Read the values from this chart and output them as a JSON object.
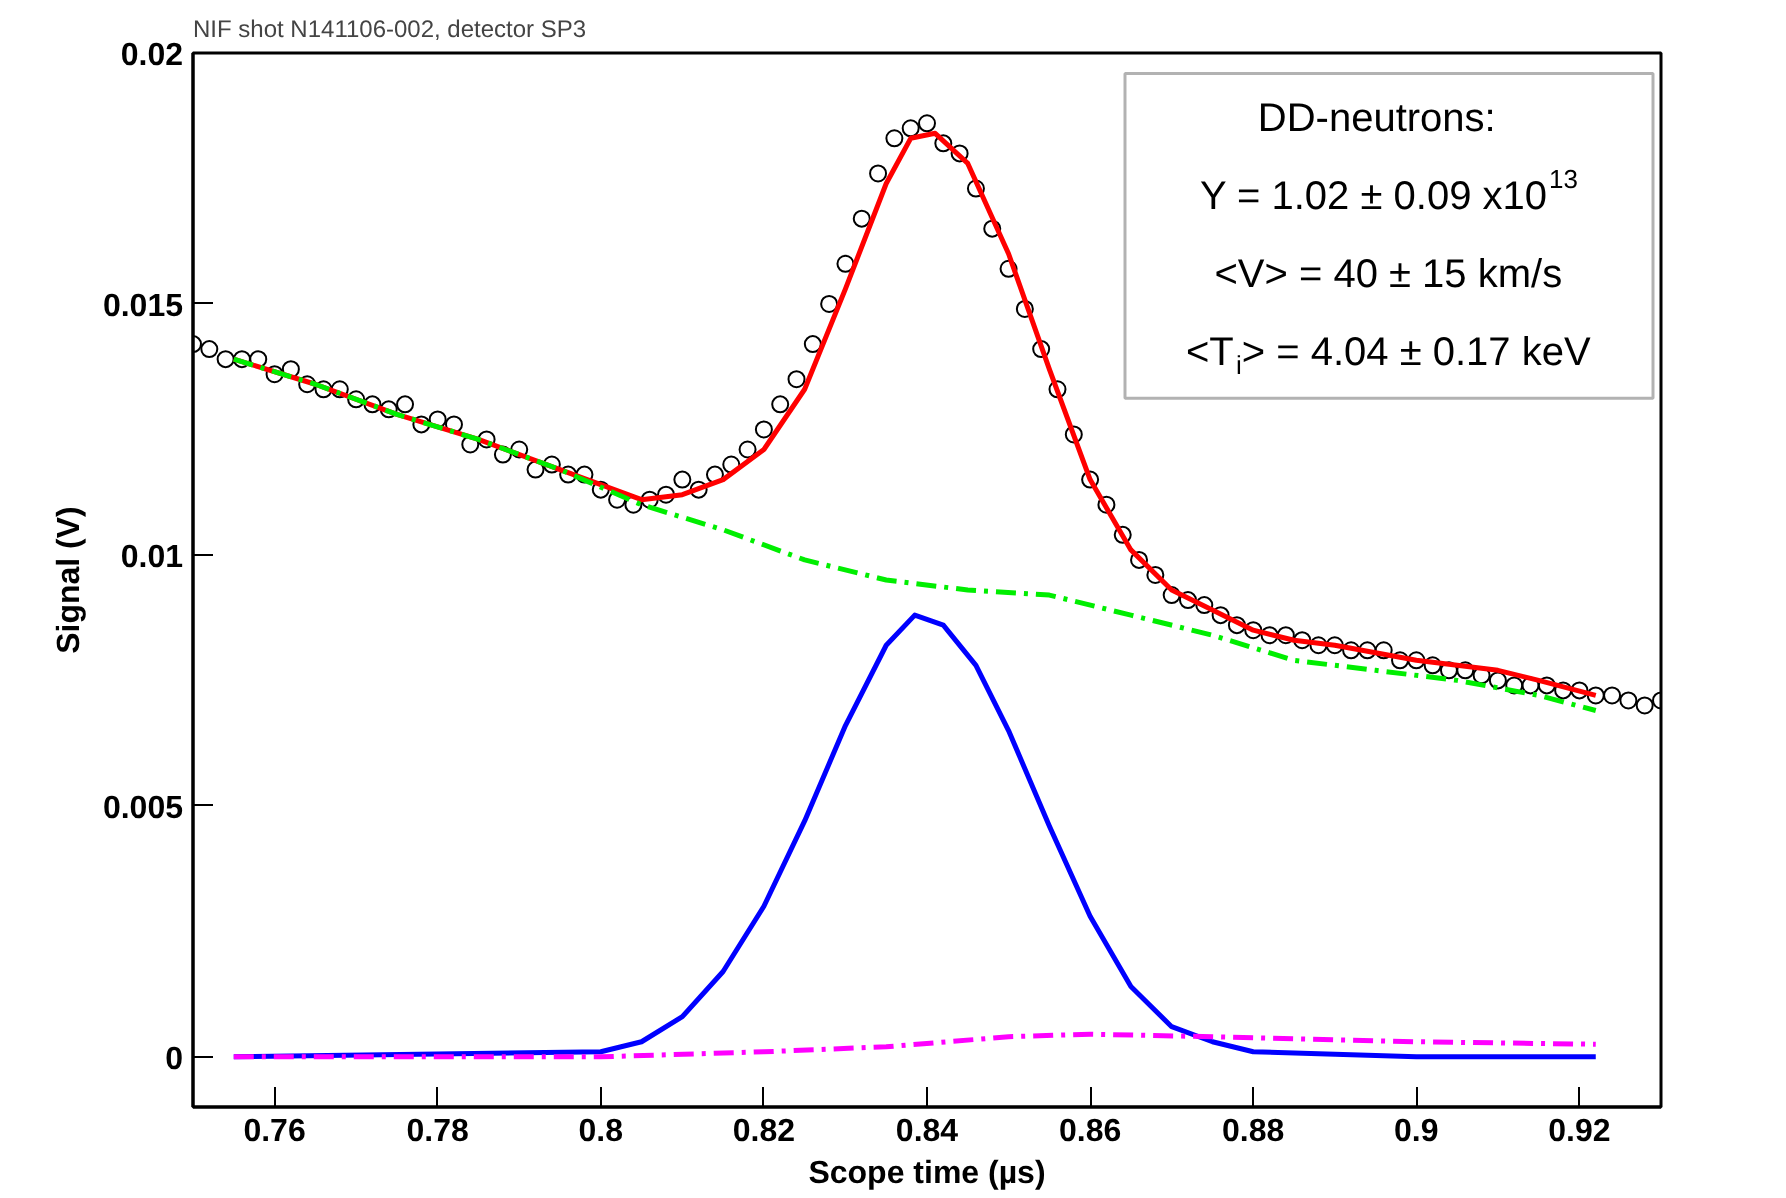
{
  "chart_data": {
    "type": "line",
    "title": "NIF shot N141106-002, detector SP3",
    "xlabel": "Scope time (µs)",
    "ylabel": "Signal (V)",
    "xlim": [
      0.75,
      0.93
    ],
    "ylim": [
      -0.001,
      0.02
    ],
    "xticks": [
      0.76,
      0.78,
      0.8,
      0.82,
      0.84,
      0.86,
      0.88,
      0.9,
      0.92
    ],
    "yticks": [
      0,
      0.005,
      0.01,
      0.015,
      0.02
    ],
    "grid": false,
    "annotations": [
      "DD-neutrons:",
      "Y = 1.02 ± 0.09 x10$^{13}$",
      "<V> = 40 ± 15 km/s",
      "<T$_{i}$> = 4.04 ± 0.17 keV"
    ],
    "series": [
      {
        "type": "scatter",
        "marker": "circle",
        "color": "#000000",
        "x": [
          0.75,
          0.752,
          0.754,
          0.756,
          0.758,
          0.76,
          0.762,
          0.764,
          0.766,
          0.768,
          0.77,
          0.772,
          0.774,
          0.776,
          0.778,
          0.78,
          0.782,
          0.784,
          0.786,
          0.788,
          0.79,
          0.792,
          0.794,
          0.796,
          0.798,
          0.8,
          0.802,
          0.804,
          0.806,
          0.808,
          0.81,
          0.812,
          0.814,
          0.816,
          0.818,
          0.82,
          0.822,
          0.824,
          0.826,
          0.828,
          0.83,
          0.832,
          0.834,
          0.836,
          0.838,
          0.84,
          0.842,
          0.844,
          0.846,
          0.848,
          0.85,
          0.852,
          0.854,
          0.856,
          0.858,
          0.86,
          0.862,
          0.864,
          0.866,
          0.868,
          0.87,
          0.872,
          0.874,
          0.876,
          0.878,
          0.88,
          0.882,
          0.884,
          0.886,
          0.888,
          0.89,
          0.892,
          0.894,
          0.896,
          0.898,
          0.9,
          0.902,
          0.904,
          0.906,
          0.908,
          0.91,
          0.912,
          0.914,
          0.916,
          0.918,
          0.92,
          0.922,
          0.924,
          0.926,
          0.928,
          0.93
        ],
        "values": [
          0.0142,
          0.0141,
          0.0139,
          0.0139,
          0.0139,
          0.0136,
          0.0137,
          0.0134,
          0.0133,
          0.0133,
          0.0131,
          0.013,
          0.0129,
          0.013,
          0.0126,
          0.0127,
          0.0126,
          0.0122,
          0.0123,
          0.012,
          0.0121,
          0.0117,
          0.0118,
          0.0116,
          0.0116,
          0.0113,
          0.0111,
          0.011,
          0.0111,
          0.0112,
          0.0115,
          0.0113,
          0.0116,
          0.0118,
          0.0121,
          0.0125,
          0.013,
          0.0135,
          0.0142,
          0.015,
          0.0158,
          0.0167,
          0.0176,
          0.0183,
          0.0185,
          0.0186,
          0.0182,
          0.018,
          0.0173,
          0.0165,
          0.0157,
          0.0149,
          0.0141,
          0.0133,
          0.0124,
          0.0115,
          0.011,
          0.0104,
          0.0099,
          0.0096,
          0.0092,
          0.0091,
          0.009,
          0.0088,
          0.0086,
          0.0085,
          0.0084,
          0.0084,
          0.0083,
          0.0082,
          0.0082,
          0.0081,
          0.0081,
          0.0081,
          0.0079,
          0.0079,
          0.0078,
          0.0077,
          0.0077,
          0.0076,
          0.0075,
          0.0074,
          0.0074,
          0.0074,
          0.0073,
          0.0073,
          0.0072,
          0.0072,
          0.0071,
          0.007,
          0.0071
        ]
      },
      {
        "line_style": "solid",
        "color": "#ff0000",
        "x": [
          0.755,
          0.765,
          0.775,
          0.785,
          0.795,
          0.805,
          0.81,
          0.815,
          0.82,
          0.825,
          0.83,
          0.835,
          0.838,
          0.841,
          0.845,
          0.85,
          0.855,
          0.86,
          0.865,
          0.87,
          0.875,
          0.88,
          0.885,
          0.89,
          0.9,
          0.91,
          0.915,
          0.922
        ],
        "values": [
          0.0139,
          0.0134,
          0.0128,
          0.0123,
          0.0117,
          0.0111,
          0.0112,
          0.0115,
          0.0121,
          0.0133,
          0.0153,
          0.0174,
          0.0183,
          0.0184,
          0.0178,
          0.016,
          0.0137,
          0.0115,
          0.0101,
          0.0093,
          0.0089,
          0.0085,
          0.0083,
          0.0082,
          0.0079,
          0.0077,
          0.0075,
          0.0072
        ]
      },
      {
        "line_style": "dashed",
        "color": "#00ee00",
        "x": [
          0.755,
          0.765,
          0.775,
          0.785,
          0.795,
          0.805,
          0.815,
          0.825,
          0.835,
          0.845,
          0.855,
          0.865,
          0.875,
          0.885,
          0.895,
          0.905,
          0.915,
          0.922
        ],
        "values": [
          0.0139,
          0.0134,
          0.0128,
          0.0123,
          0.0117,
          0.011,
          0.0105,
          0.0099,
          0.0095,
          0.0093,
          0.0092,
          0.0088,
          0.0084,
          0.0079,
          0.0077,
          0.0075,
          0.0072,
          0.0069
        ]
      },
      {
        "line_style": "solid",
        "color": "#0000ff",
        "x": [
          0.755,
          0.8,
          0.805,
          0.81,
          0.815,
          0.82,
          0.825,
          0.83,
          0.835,
          0.8385,
          0.842,
          0.846,
          0.85,
          0.855,
          0.86,
          0.865,
          0.87,
          0.875,
          0.88,
          0.9,
          0.922
        ],
        "values": [
          0,
          0.0001,
          0.0003,
          0.0008,
          0.0017,
          0.003,
          0.0047,
          0.0066,
          0.0082,
          0.0088,
          0.0086,
          0.0078,
          0.0065,
          0.0046,
          0.0028,
          0.0014,
          0.0006,
          0.0003,
          0.0001,
          0,
          0
        ]
      },
      {
        "line_style": "dashed",
        "color": "#ff00ff",
        "x": [
          0.755,
          0.8,
          0.82,
          0.835,
          0.85,
          0.86,
          0.875,
          0.9,
          0.922
        ],
        "values": [
          0,
          0,
          0.0001,
          0.0002,
          0.0004,
          0.00045,
          0.0004,
          0.0003,
          0.00025
        ]
      }
    ]
  }
}
